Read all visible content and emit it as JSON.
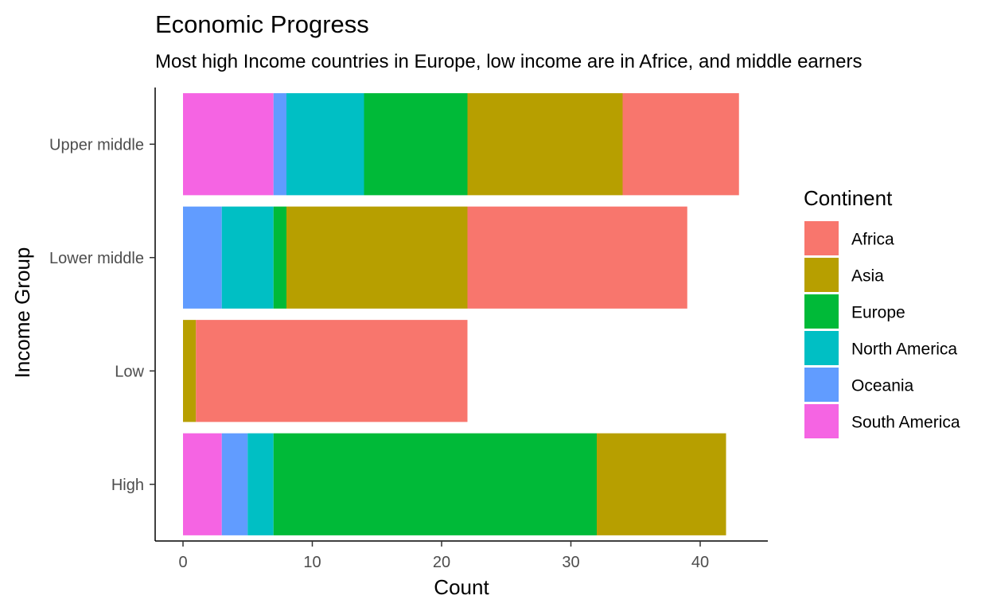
{
  "chart_data": {
    "type": "bar",
    "orientation": "horizontal",
    "stacked": true,
    "title": "Economic Progress",
    "subtitle": "Most high Income countries in Europe, low income are in Africe, and middle earners",
    "xlabel": "Count",
    "ylabel": "Income Group",
    "xlim": [
      0,
      45
    ],
    "x_ticks": [
      0,
      10,
      20,
      30,
      40
    ],
    "categories": [
      "High",
      "Low",
      "Lower middle",
      "Upper middle"
    ],
    "grid": false,
    "legend": {
      "title": "Continent",
      "position": "right"
    },
    "series": [
      {
        "name": "Africa",
        "color": "#F8766D",
        "values": [
          0,
          21,
          17,
          9
        ]
      },
      {
        "name": "Asia",
        "color": "#B79F00",
        "values": [
          10,
          1,
          14,
          12
        ]
      },
      {
        "name": "Europe",
        "color": "#00BA38",
        "values": [
          25,
          0,
          1,
          8
        ]
      },
      {
        "name": "North America",
        "color": "#00BFC4",
        "values": [
          2,
          0,
          4,
          6
        ]
      },
      {
        "name": "Oceania",
        "color": "#619CFF",
        "values": [
          2,
          0,
          3,
          1
        ]
      },
      {
        "name": "South America",
        "color": "#F564E3",
        "values": [
          3,
          0,
          0,
          7
        ]
      }
    ]
  }
}
